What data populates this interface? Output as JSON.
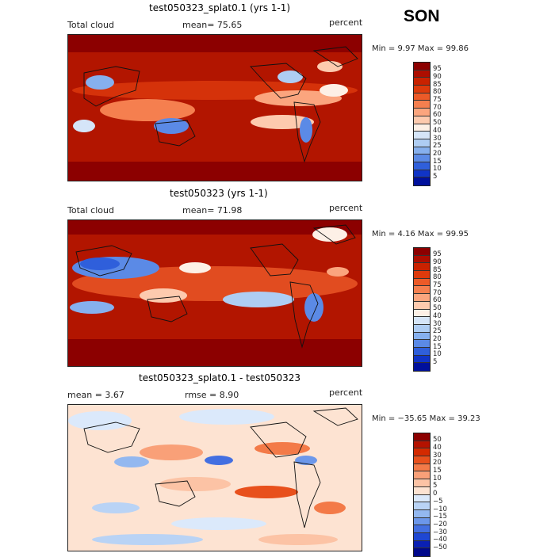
{
  "season": "SON",
  "panels": [
    {
      "title": "test050323_splat0.1 (yrs 1-1)",
      "left_label": "Total cloud",
      "stat_label": "mean=  75.65",
      "units": "percent",
      "minmax": "Min =   9.97 Max =  99.86",
      "colorbar": {
        "labels": [
          "95",
          "90",
          "85",
          "80",
          "75",
          "70",
          "60",
          "50",
          "40",
          "30",
          "25",
          "20",
          "15",
          "10",
          "5"
        ],
        "colors": [
          "#8c0000",
          "#ad0e00",
          "#c92200",
          "#dd3a0c",
          "#ec5a28",
          "#f57f4f",
          "#fba57e",
          "#fdcaae",
          "#fdf0e6",
          "#d5e5f8",
          "#aecdf3",
          "#86b0ee",
          "#5b8ae6",
          "#2f5fdb",
          "#1034c7",
          "#00109c"
        ]
      }
    },
    {
      "title": "test050323 (yrs 1-1)",
      "left_label": "Total cloud",
      "stat_label": "mean=  71.98",
      "units": "percent",
      "minmax": "Min =   4.16 Max =  99.95",
      "colorbar": {
        "labels": [
          "95",
          "90",
          "85",
          "80",
          "75",
          "70",
          "60",
          "50",
          "40",
          "30",
          "25",
          "20",
          "15",
          "10",
          "5"
        ],
        "colors": [
          "#8c0000",
          "#ad0e00",
          "#c92200",
          "#dd3a0c",
          "#ec5a28",
          "#f57f4f",
          "#fba57e",
          "#fdcaae",
          "#fdf0e6",
          "#d5e5f8",
          "#aecdf3",
          "#86b0ee",
          "#5b8ae6",
          "#2f5fdb",
          "#1034c7",
          "#00109c"
        ]
      }
    },
    {
      "title": "test050323_splat0.1 - test050323",
      "left_label": "mean =   3.67",
      "stat_label": "rmse =   8.90",
      "units": "percent",
      "minmax": "Min = −35.65 Max =  39.23",
      "colorbar": {
        "labels": [
          "50",
          "40",
          "30",
          "20",
          "15",
          "10",
          "5",
          "0",
          "−5",
          "−10",
          "−15",
          "−20",
          "−30",
          "−40",
          "−50"
        ],
        "colors": [
          "#8c0000",
          "#b51200",
          "#d42a00",
          "#e8501c",
          "#f37a48",
          "#f9a078",
          "#fcc3a5",
          "#fde3d2",
          "#dbe9fb",
          "#b9d3f5",
          "#93b8f0",
          "#6c97ea",
          "#436fe1",
          "#1f47d3",
          "#0a20b4",
          "#00088a"
        ]
      }
    }
  ]
}
